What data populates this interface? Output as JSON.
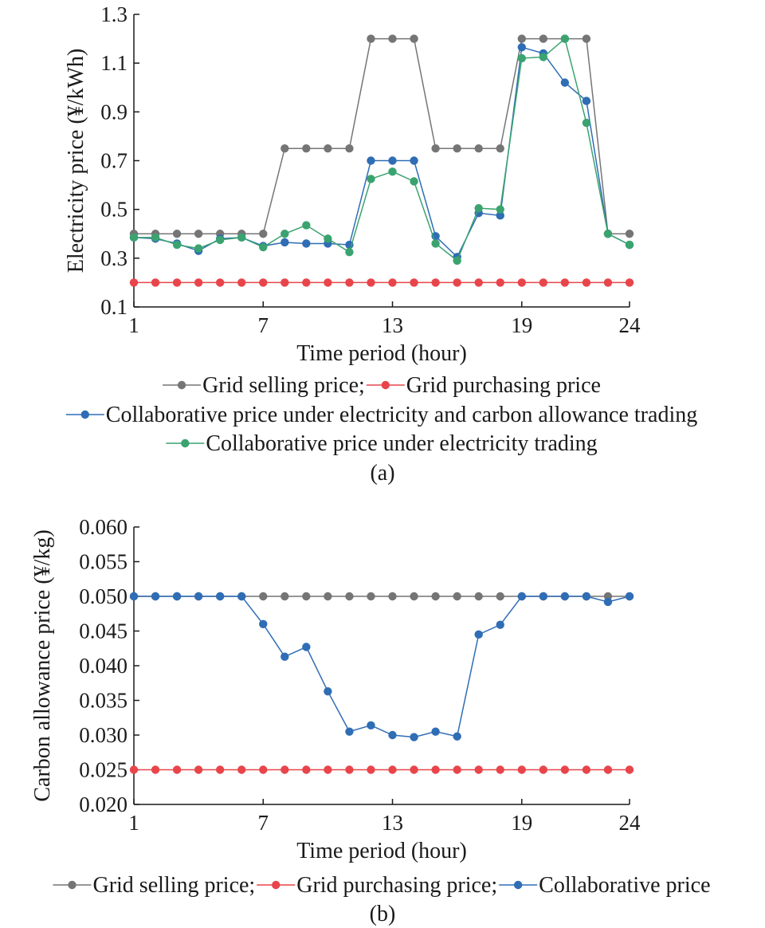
{
  "chart_data": [
    {
      "type": "line",
      "panel_label": "(a)",
      "xlabel": "Time period (hour)",
      "ylabel": "Electricity price (¥/kWh)",
      "xlim": [
        1,
        24
      ],
      "ylim": [
        0.1,
        1.3
      ],
      "x_ticks": [
        1,
        7,
        13,
        19,
        24
      ],
      "y_ticks": [
        "0.1",
        "0.3",
        "0.5",
        "0.7",
        "0.9",
        "1.1",
        "1.3"
      ],
      "x": [
        1,
        2,
        3,
        4,
        5,
        6,
        7,
        8,
        9,
        10,
        11,
        12,
        13,
        14,
        15,
        16,
        17,
        18,
        19,
        20,
        21,
        22,
        23,
        24
      ],
      "series": [
        {
          "name": "Grid selling price;",
          "color": "#757575",
          "values": [
            0.4,
            0.4,
            0.4,
            0.4,
            0.4,
            0.4,
            0.4,
            0.75,
            0.75,
            0.75,
            0.75,
            1.2,
            1.2,
            1.2,
            0.75,
            0.75,
            0.75,
            0.75,
            1.2,
            1.2,
            1.2,
            1.2,
            0.4,
            0.4
          ]
        },
        {
          "name": "Grid purchasing price",
          "color": "#e8454b",
          "values": [
            0.2,
            0.2,
            0.2,
            0.2,
            0.2,
            0.2,
            0.2,
            0.2,
            0.2,
            0.2,
            0.2,
            0.2,
            0.2,
            0.2,
            0.2,
            0.2,
            0.2,
            0.2,
            0.2,
            0.2,
            0.2,
            0.2,
            0.2,
            0.2
          ]
        },
        {
          "name": "Collaborative price under electricity and carbon allowance trading",
          "color": "#2f6db5",
          "values": [
            0.385,
            0.38,
            0.36,
            0.33,
            0.38,
            0.385,
            0.35,
            0.365,
            0.36,
            0.36,
            0.355,
            0.7,
            0.7,
            0.7,
            0.39,
            0.305,
            0.485,
            0.475,
            1.165,
            1.14,
            1.02,
            0.945,
            0.4,
            0.355
          ]
        },
        {
          "name": "Collaborative price under electricity trading",
          "color": "#3aa36f",
          "values": [
            0.385,
            0.385,
            0.355,
            0.34,
            0.375,
            0.385,
            0.345,
            0.4,
            0.435,
            0.38,
            0.325,
            0.625,
            0.655,
            0.615,
            0.36,
            0.29,
            0.505,
            0.5,
            1.12,
            1.125,
            1.2,
            0.855,
            0.4,
            0.355
          ]
        }
      ],
      "legend_lines": [
        [
          0,
          1
        ],
        [
          2
        ],
        [
          3
        ]
      ]
    },
    {
      "type": "line",
      "panel_label": "(b)",
      "xlabel": "Time period (hour)",
      "ylabel": "Carbon allowance price (¥/kg)",
      "xlim": [
        1,
        24
      ],
      "ylim": [
        0.02,
        0.06
      ],
      "x_ticks": [
        1,
        7,
        13,
        19,
        24
      ],
      "y_ticks": [
        "0.020",
        "0.025",
        "0.030",
        "0.035",
        "0.040",
        "0.045",
        "0.050",
        "0.055",
        "0.060"
      ],
      "x": [
        1,
        2,
        3,
        4,
        5,
        6,
        7,
        8,
        9,
        10,
        11,
        12,
        13,
        14,
        15,
        16,
        17,
        18,
        19,
        20,
        21,
        22,
        23,
        24
      ],
      "series": [
        {
          "name": "Grid selling price;",
          "color": "#757575",
          "values": [
            0.05,
            0.05,
            0.05,
            0.05,
            0.05,
            0.05,
            0.05,
            0.05,
            0.05,
            0.05,
            0.05,
            0.05,
            0.05,
            0.05,
            0.05,
            0.05,
            0.05,
            0.05,
            0.05,
            0.05,
            0.05,
            0.05,
            0.05,
            0.05
          ]
        },
        {
          "name": "Grid purchasing price;",
          "color": "#e8454b",
          "values": [
            0.025,
            0.025,
            0.025,
            0.025,
            0.025,
            0.025,
            0.025,
            0.025,
            0.025,
            0.025,
            0.025,
            0.025,
            0.025,
            0.025,
            0.025,
            0.025,
            0.025,
            0.025,
            0.025,
            0.025,
            0.025,
            0.025,
            0.025,
            0.025
          ]
        },
        {
          "name": "Collaborative price",
          "color": "#2f6db5",
          "values": [
            0.05,
            0.05,
            0.05,
            0.05,
            0.05,
            0.05,
            0.046,
            0.0413,
            0.0427,
            0.0363,
            0.0305,
            0.0314,
            0.03,
            0.0297,
            0.0305,
            0.0298,
            0.0445,
            0.0459,
            0.05,
            0.05,
            0.05,
            0.05,
            0.0492,
            0.05
          ]
        }
      ],
      "legend_lines": [
        [
          0,
          1,
          2
        ]
      ]
    }
  ]
}
